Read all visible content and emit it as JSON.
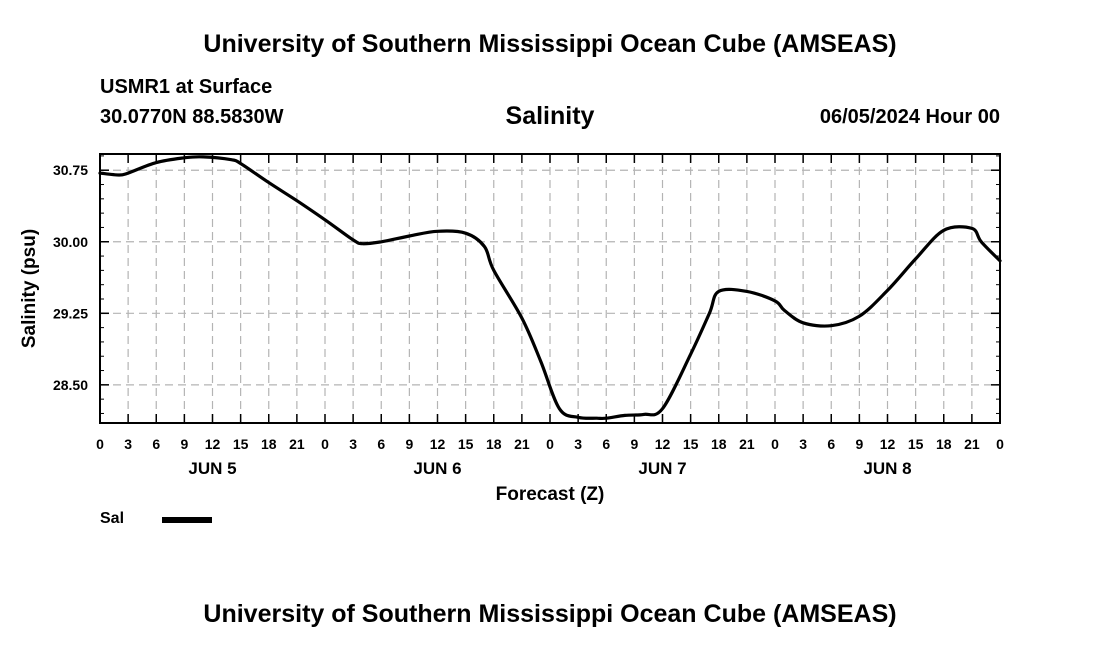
{
  "header": {
    "title": "University of Southern Mississippi Ocean Cube (AMSEAS)",
    "station": "USMR1 at Surface",
    "coords": "30.0770N  88.5830W",
    "variable": "Salinity",
    "datetime": "06/05/2024 Hour 00"
  },
  "footer": {
    "title": "University of Southern Mississippi Ocean Cube (AMSEAS)"
  },
  "legend": {
    "label": "Sal",
    "color": "#000000"
  },
  "chart_data": {
    "type": "line",
    "title": "Salinity",
    "xlabel": "Forecast (Z)",
    "ylabel": "Salinity (psu)",
    "xlim": [
      0,
      96
    ],
    "ylim": [
      28.1,
      30.92
    ],
    "y_ticks": [
      28.5,
      29.25,
      30.0,
      30.75
    ],
    "y_tick_labels": [
      "28.50",
      "29.25",
      "30.00",
      "30.75"
    ],
    "x_ticks": [
      0,
      3,
      6,
      9,
      12,
      15,
      18,
      21,
      24,
      27,
      30,
      33,
      36,
      39,
      42,
      45,
      48,
      51,
      54,
      57,
      60,
      63,
      66,
      69,
      72,
      75,
      78,
      81,
      84,
      87,
      90,
      93,
      96
    ],
    "x_tick_labels": [
      "0",
      "3",
      "6",
      "9",
      "12",
      "15",
      "18",
      "21",
      "0",
      "3",
      "6",
      "9",
      "12",
      "15",
      "18",
      "21",
      "0",
      "3",
      "6",
      "9",
      "12",
      "15",
      "18",
      "21",
      "0",
      "3",
      "6",
      "9",
      "12",
      "15",
      "18",
      "21",
      "0"
    ],
    "day_labels": [
      {
        "label": "JUN 5",
        "x": 12
      },
      {
        "label": "JUN 6",
        "x": 36
      },
      {
        "label": "JUN 7",
        "x": 60
      },
      {
        "label": "JUN 8",
        "x": 84
      }
    ],
    "grid": true,
    "series": [
      {
        "name": "Sal",
        "x": [
          0,
          2,
          3,
          6,
          9,
          11,
          14,
          15,
          18,
          21,
          24,
          27,
          28,
          30,
          33,
          36,
          39,
          41,
          42,
          45,
          47,
          49,
          51,
          53,
          54,
          56,
          58,
          60,
          63,
          65,
          66,
          69,
          72,
          73,
          75,
          78,
          81,
          84,
          87,
          90,
          93,
          94,
          96
        ],
        "values": [
          30.72,
          30.7,
          30.72,
          30.83,
          30.88,
          30.89,
          30.86,
          30.82,
          30.62,
          30.43,
          30.23,
          30.02,
          29.98,
          30.0,
          30.06,
          30.11,
          30.09,
          29.95,
          29.7,
          29.2,
          28.75,
          28.25,
          28.16,
          28.15,
          28.15,
          28.18,
          28.19,
          28.25,
          28.82,
          29.25,
          29.48,
          29.48,
          29.38,
          29.28,
          29.15,
          29.12,
          29.22,
          29.49,
          29.82,
          30.12,
          30.14,
          30.0,
          29.8
        ]
      }
    ]
  }
}
